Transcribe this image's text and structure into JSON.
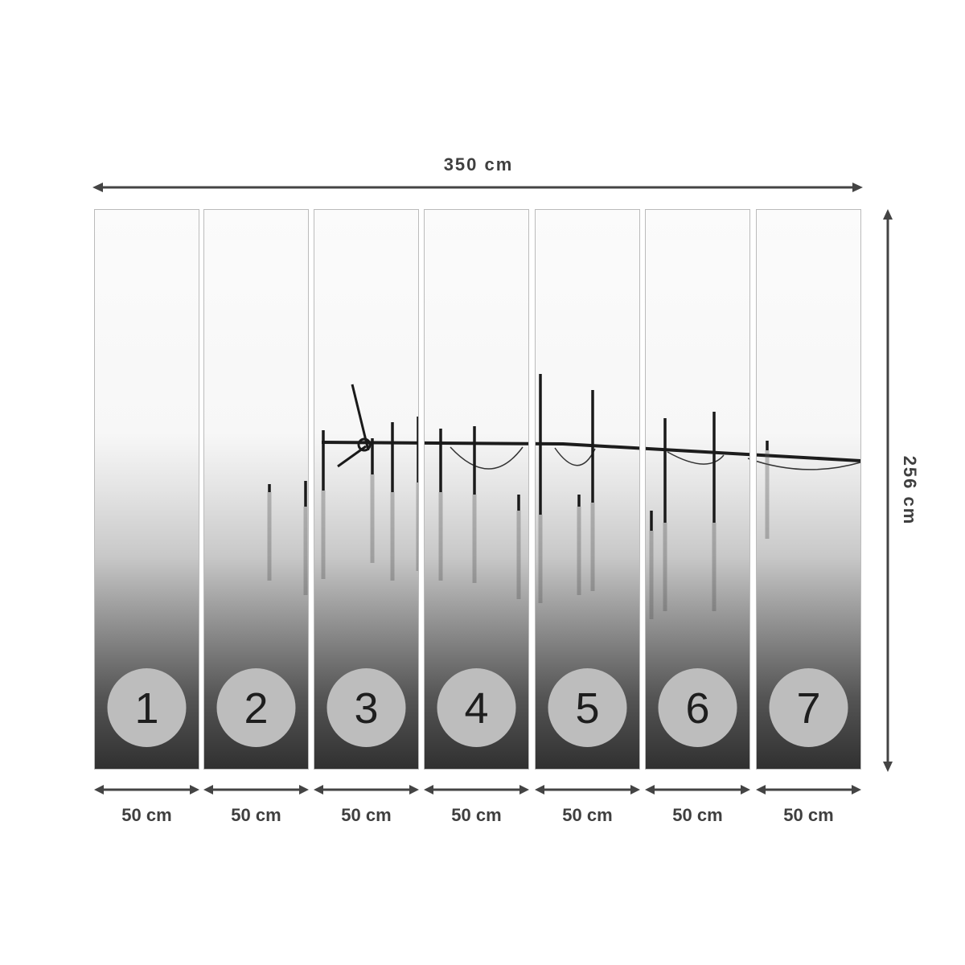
{
  "total_width_label": "350 cm",
  "total_height_label": "256 cm",
  "panels": [
    {
      "number": "1",
      "width_label": "50 cm"
    },
    {
      "number": "2",
      "width_label": "50 cm"
    },
    {
      "number": "3",
      "width_label": "50 cm"
    },
    {
      "number": "4",
      "width_label": "50 cm"
    },
    {
      "number": "5",
      "width_label": "50 cm"
    },
    {
      "number": "6",
      "width_label": "50 cm"
    },
    {
      "number": "7",
      "width_label": "50 cm"
    }
  ],
  "colors": {
    "arrow": "#444444",
    "badge": "#bdbdbd",
    "panel_border": "#bbbbbb"
  }
}
